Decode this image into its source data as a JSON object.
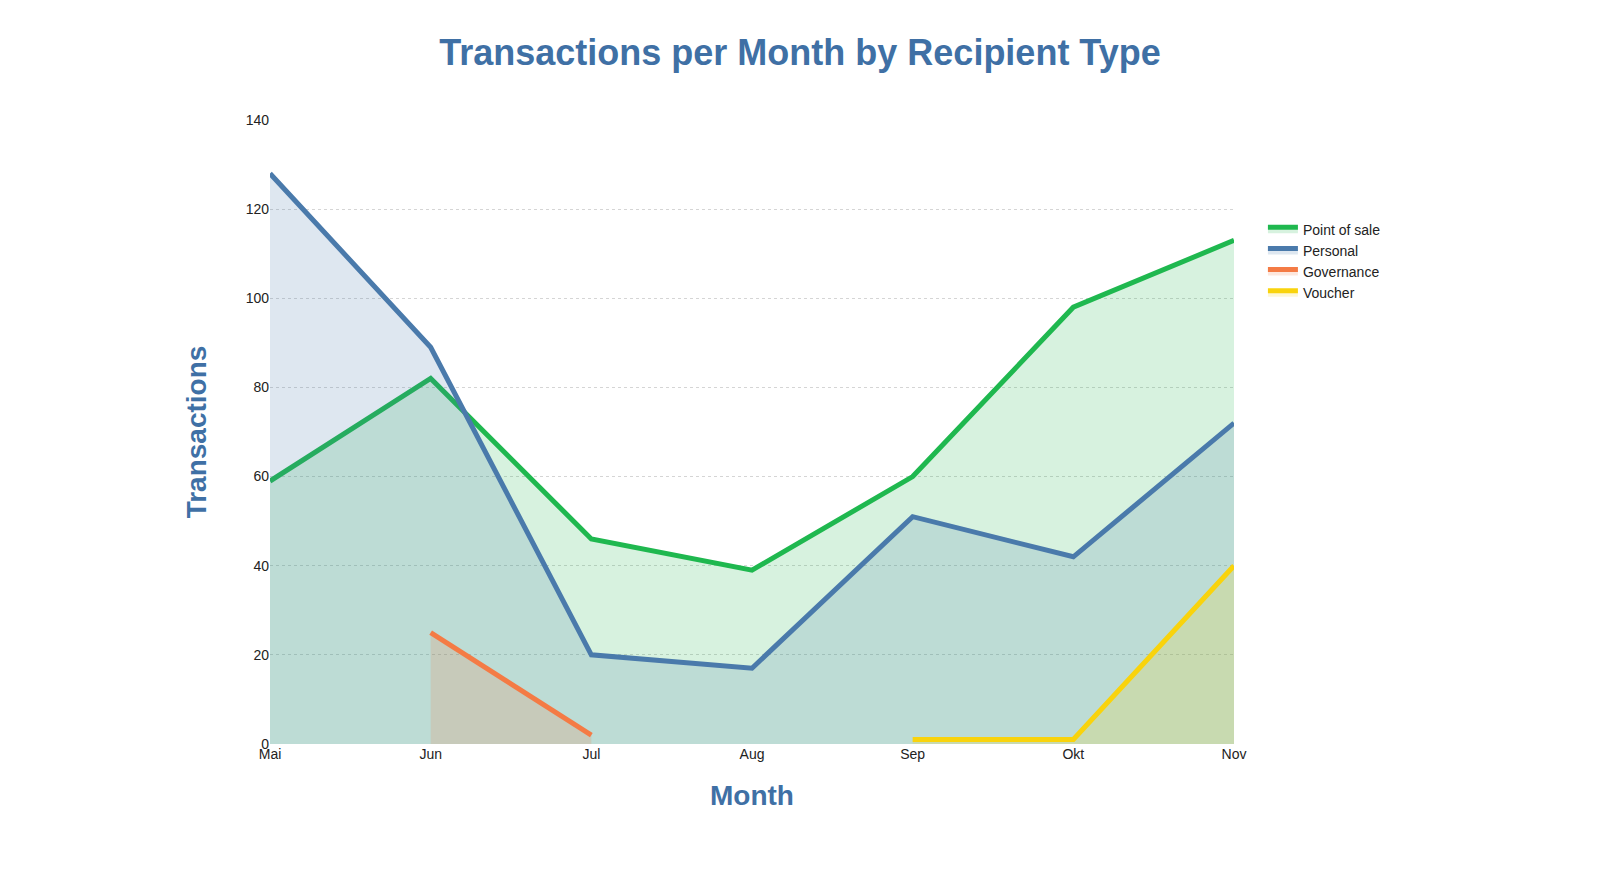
{
  "chart_data": {
    "type": "line",
    "title": "Transactions per Month by Recipient Type",
    "x_label": "Month",
    "y_label": "Transactions",
    "categories": [
      "Mai",
      "Jun",
      "Jul",
      "Aug",
      "Sep",
      "Okt",
      "Nov"
    ],
    "series": [
      {
        "name": "Point of sale",
        "color": "#1fb84f",
        "values": [
          59,
          82,
          46,
          39,
          60,
          98,
          113
        ]
      },
      {
        "name": "Personal",
        "color": "#4a7aab",
        "values": [
          128,
          89,
          20,
          17,
          51,
          42,
          72
        ]
      },
      {
        "name": "Governance",
        "color": "#f47b45",
        "values": [
          null,
          25,
          2,
          null,
          null,
          null,
          null
        ]
      },
      {
        "name": "Voucher",
        "color": "#f9d30c",
        "values": [
          null,
          null,
          null,
          null,
          1,
          1,
          40
        ]
      }
    ],
    "ylim": [
      0,
      140
    ],
    "yticks": [
      0,
      20,
      40,
      60,
      80,
      100,
      120,
      140
    ],
    "grid": true,
    "legend": "right"
  }
}
